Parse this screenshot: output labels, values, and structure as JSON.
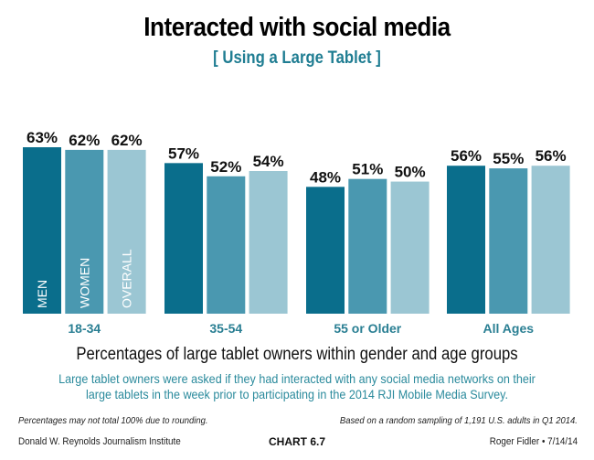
{
  "header": {
    "title": "Interacted with social media",
    "subtitle": "[ Using a Large Tablet ]"
  },
  "chart_data": {
    "type": "bar",
    "title": "Interacted with social media",
    "subtitle": "[ Using a Large Tablet ]",
    "categories": [
      "18-34",
      "35-54",
      "55 or Older",
      "All Ages"
    ],
    "series": [
      {
        "name": "MEN",
        "color": "#0a6e8c",
        "values": [
          63,
          57,
          48,
          56
        ]
      },
      {
        "name": "WOMEN",
        "color": "#4a98b0",
        "values": [
          62,
          52,
          51,
          55
        ]
      },
      {
        "name": "OVERALL",
        "color": "#9bc6d3",
        "values": [
          62,
          54,
          50,
          56
        ]
      }
    ],
    "value_suffix": "%",
    "xlabel": "",
    "ylabel": "",
    "ylim": [
      0,
      100
    ],
    "grid": false,
    "legend": "inside-first-group-bars",
    "category_label_color": "#2a7f93"
  },
  "caption": "Percentages of large tablet owners within gender and age groups",
  "description": "Large tablet owners were asked if they had interacted with any social media networks on their large tablets in the week prior to participating in the 2014 RJI Mobile Media Survey.",
  "notes": {
    "left": "Percentages may not total 100% due to rounding.",
    "right": "Based on a random sampling of 1,191 U.S. adults in Q1 2014."
  },
  "footer": {
    "left": "Donald W. Reynolds Journalism Institute",
    "center": "CHART 6.7",
    "right": "Roger Fidler • 7/14/14"
  }
}
